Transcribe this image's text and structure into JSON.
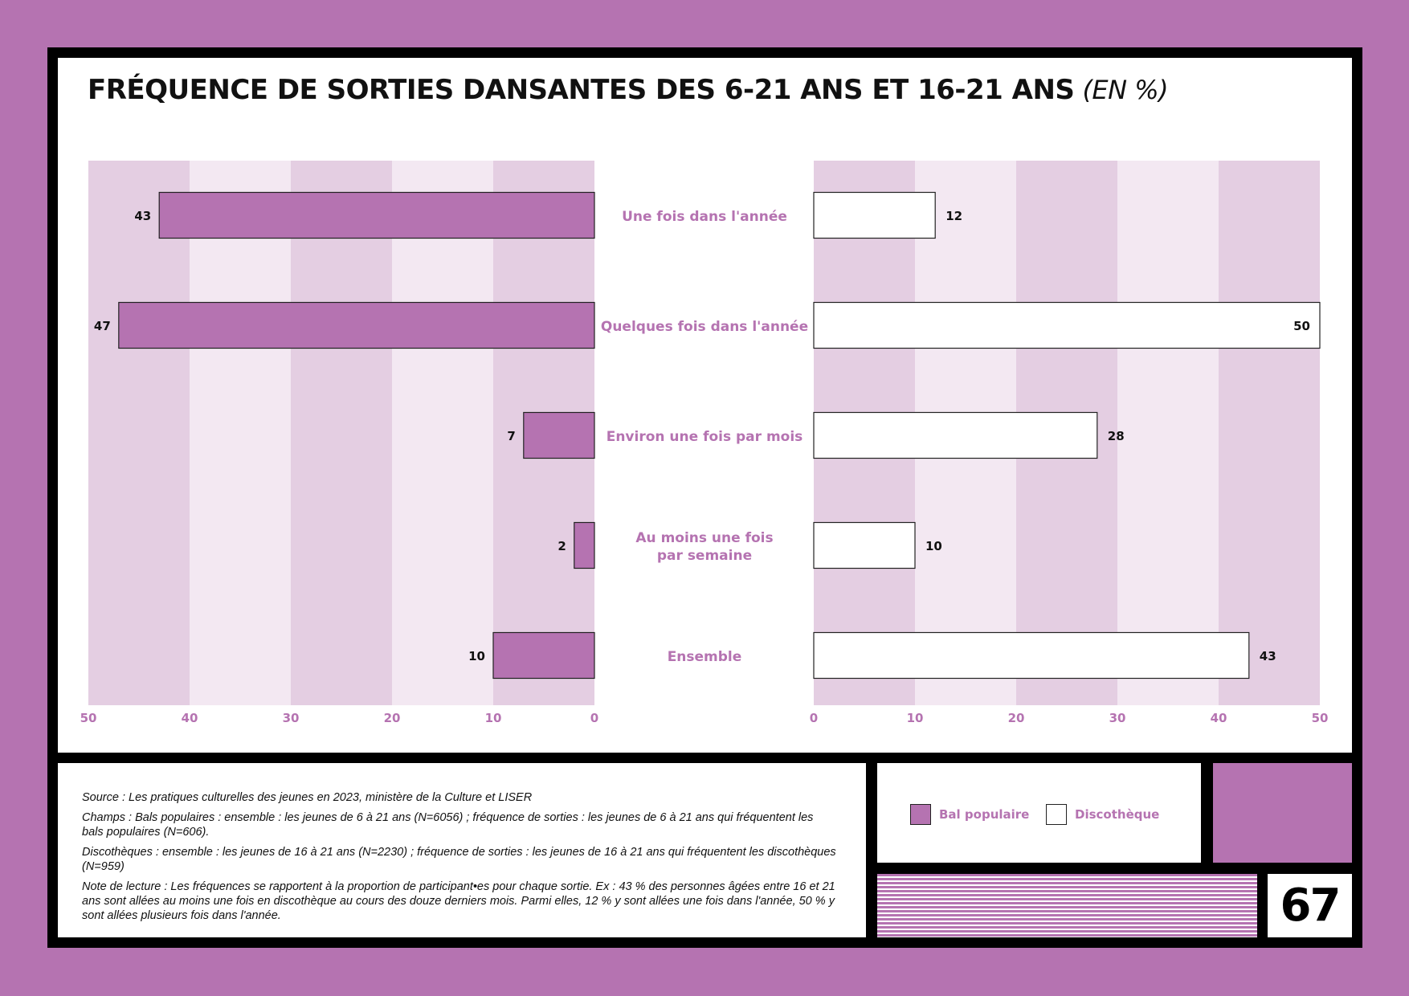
{
  "title": "FRÉQUENCE DE SORTIES DANSANTES DES 6-21 ANS ET 16-21 ANS",
  "title_unit": "(EN %)",
  "colors": {
    "accent": "#b573b1",
    "band_dark": "#e4cee2",
    "band_light": "#f3e8f2",
    "bar_outline": "#222222"
  },
  "chart_data": {
    "type": "bar",
    "orientation": "horizontal",
    "layout": "butterfly",
    "categories": [
      "Une fois dans l'année",
      "Quelques fois dans l'année",
      "Environ une fois par mois",
      [
        "Au moins une fois",
        "par semaine"
      ],
      "Ensemble"
    ],
    "series": [
      {
        "name": "Bal populaire",
        "side": "left",
        "color": "#b573b1",
        "values": [
          43,
          47,
          7,
          2,
          10
        ]
      },
      {
        "name": "Discothèque",
        "side": "right",
        "color": "#ffffff",
        "values": [
          12,
          50,
          28,
          10,
          43
        ]
      }
    ],
    "xlim": [
      0,
      50
    ],
    "xticks": [
      0,
      10,
      20,
      30,
      40,
      50
    ],
    "grid": "alternating vertical bands",
    "legend": "bottom-right"
  },
  "legend": {
    "items": [
      {
        "label": "Bal populaire",
        "color": "#b573b1"
      },
      {
        "label": "Discothèque",
        "color": "#ffffff"
      }
    ]
  },
  "notes": {
    "source": "Source :  Les pratiques culturelles des jeunes en 2023, ministère de la Culture et LISER",
    "champs": "Champs : Bals populaires : ensemble :  les jeunes de 6 à 21 ans (N=6056) ; fréquence de sorties : les jeunes de 6 à 21 ans qui fréquentent les bals populaires (N=606).",
    "discotheques": "Discothèques : ensemble : les jeunes de 16 à 21 ans (N=2230) ; fréquence de sorties : les jeunes de 16 à 21 ans qui fréquentent les discothèques (N=959)",
    "lecture": "Note de lecture : Les fréquences se rapportent à la proportion de participant•es pour chaque sortie. Ex : 43 % des personnes âgées entre 16 et 21 ans sont allées au moins une fois en discothèque au cours des douze derniers mois. Parmi elles, 12 % y sont allées une fois dans l'année, 50 % y sont allées plusieurs fois dans l'année."
  },
  "page_number": "67"
}
